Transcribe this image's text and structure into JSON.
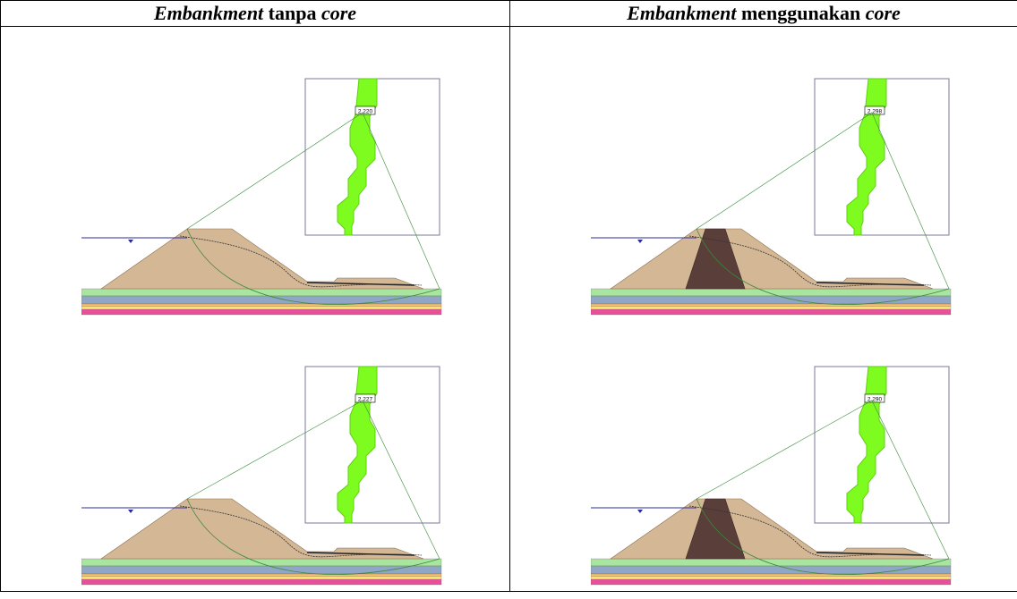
{
  "columns": [
    {
      "header": {
        "em1": "Embankment",
        "mid": " tanpa ",
        "em2": "core"
      },
      "core": false,
      "panels": [
        {
          "fs_label": "2.220"
        },
        {
          "fs_label": "2.227"
        }
      ]
    },
    {
      "header": {
        "em1": "Embankment",
        "mid": " menggunakan ",
        "em2": "core"
      },
      "core": true,
      "panels": [
        {
          "fs_label": "2.298"
        },
        {
          "fs_label": "2.290"
        }
      ]
    }
  ],
  "colors": {
    "fill": "#d4b896",
    "core": "#5a3e3a",
    "grid_green": "#7ffc1f",
    "layer_green": "#a8e6a0",
    "layer_blue": "#8fa6c6",
    "layer_orange": "#f7c06a",
    "layer_yellow": "#fff27a",
    "layer_pink": "#e9509a",
    "water": "#2c2c9c",
    "slip": "#3a8a3a"
  }
}
